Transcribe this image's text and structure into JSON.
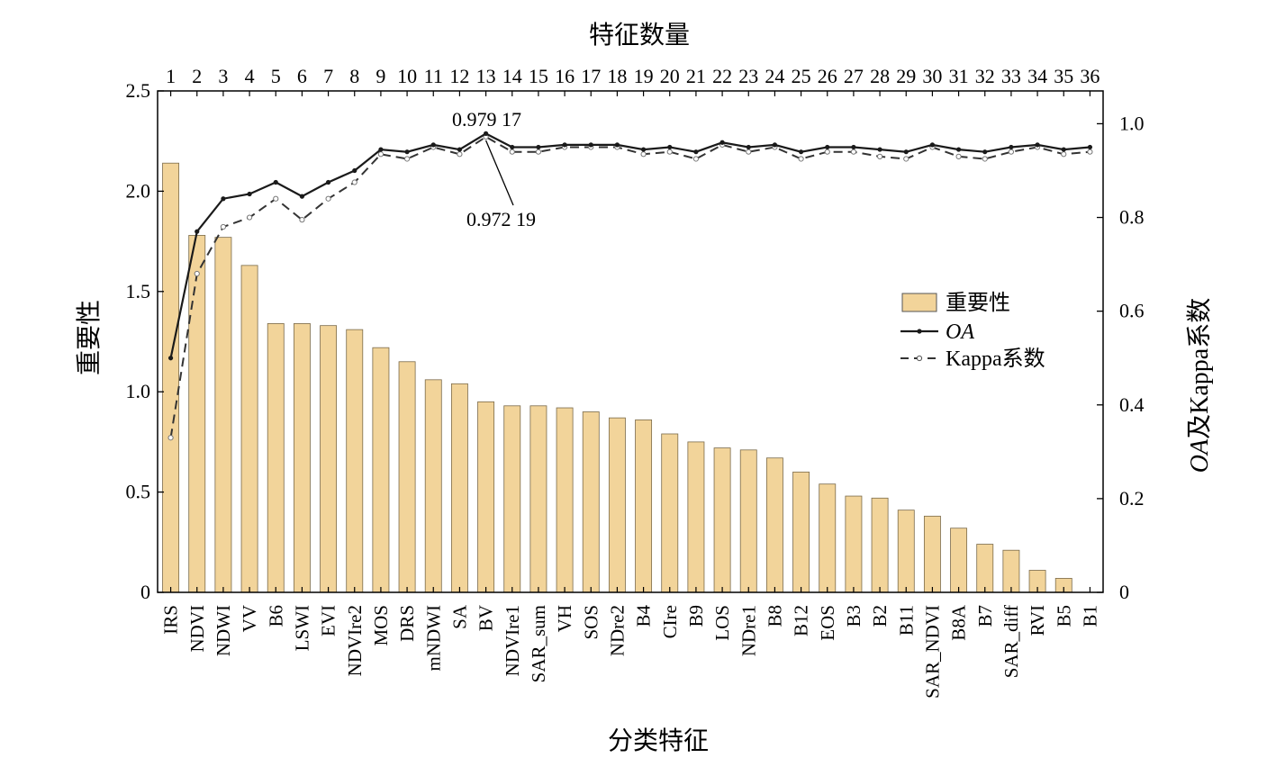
{
  "chart_data": {
    "type": "bar",
    "xlabel": "分类特征",
    "top_xlabel": "特征数量",
    "ylabel": "重要性",
    "ylabel_right_italic": "OA",
    "ylabel_right_rest": "及Kappa系数",
    "ylim": [
      0,
      2.5
    ],
    "yticks": [
      "0",
      "0.5",
      "1.0",
      "1.5",
      "2.0",
      "2.5"
    ],
    "y2lim": [
      0,
      1.07
    ],
    "y2ticks": [
      "0",
      "0.2",
      "0.4",
      "0.6",
      "0.8",
      "1.0"
    ],
    "top_ticks": [
      "1",
      "2",
      "3",
      "4",
      "5",
      "6",
      "7",
      "8",
      "9",
      "10",
      "11",
      "12",
      "13",
      "14",
      "15",
      "16",
      "17",
      "18",
      "19",
      "20",
      "21",
      "22",
      "23",
      "24",
      "25",
      "26",
      "27",
      "28",
      "29",
      "30",
      "31",
      "32",
      "33",
      "34",
      "35",
      "36"
    ],
    "categories": [
      "IRS",
      "NDVI",
      "NDWI",
      "VV",
      "B6",
      "LSWI",
      "EVI",
      "NDVIre2",
      "MOS",
      "DRS",
      "mNDWI",
      "SA",
      "BV",
      "NDVIre1",
      "SAR_sum",
      "VH",
      "SOS",
      "NDre2",
      "B4",
      "CIre",
      "B9",
      "LOS",
      "NDre1",
      "B8",
      "B12",
      "EOS",
      "B3",
      "B2",
      "B11",
      "SAR_NDVI",
      "B8A",
      "B7",
      "SAR_diff",
      "RVI",
      "B5",
      "B1"
    ],
    "grid": false,
    "legend_position": "right-middle",
    "series": [
      {
        "name": "重要性",
        "kind": "bar",
        "axis": "left",
        "color": "#f2d49a",
        "values": [
          2.14,
          1.78,
          1.77,
          1.63,
          1.34,
          1.34,
          1.33,
          1.31,
          1.22,
          1.15,
          1.06,
          1.04,
          0.95,
          0.93,
          0.93,
          0.92,
          0.9,
          0.87,
          0.86,
          0.79,
          0.75,
          0.72,
          0.71,
          0.67,
          0.6,
          0.54,
          0.48,
          0.47,
          0.41,
          0.38,
          0.32,
          0.24,
          0.21,
          0.11,
          0.07,
          0
        ]
      },
      {
        "name": "OA",
        "kind": "line",
        "axis": "right",
        "color": "#1a1a1a",
        "values": [
          0.5,
          0.77,
          0.84,
          0.85,
          0.875,
          0.845,
          0.875,
          0.9,
          0.945,
          0.94,
          0.955,
          0.945,
          0.979,
          0.95,
          0.95,
          0.955,
          0.955,
          0.955,
          0.945,
          0.95,
          0.94,
          0.96,
          0.95,
          0.955,
          0.94,
          0.95,
          0.95,
          0.945,
          0.94,
          0.955,
          0.945,
          0.94,
          0.95,
          0.955,
          0.945,
          0.95
        ]
      },
      {
        "name": "Kappa系数",
        "kind": "line",
        "axis": "right",
        "color": "#333333",
        "values": [
          0.33,
          0.68,
          0.78,
          0.8,
          0.84,
          0.795,
          0.84,
          0.875,
          0.935,
          0.925,
          0.95,
          0.935,
          0.972,
          0.94,
          0.94,
          0.95,
          0.95,
          0.95,
          0.935,
          0.94,
          0.925,
          0.955,
          0.94,
          0.95,
          0.925,
          0.94,
          0.94,
          0.93,
          0.925,
          0.95,
          0.93,
          0.925,
          0.94,
          0.95,
          0.935,
          0.94
        ]
      }
    ],
    "annotations": [
      {
        "text": "0.979 17",
        "index": 12,
        "series": "OA"
      },
      {
        "text": "0.972 19",
        "index": 12,
        "series": "Kappa系数"
      }
    ]
  }
}
